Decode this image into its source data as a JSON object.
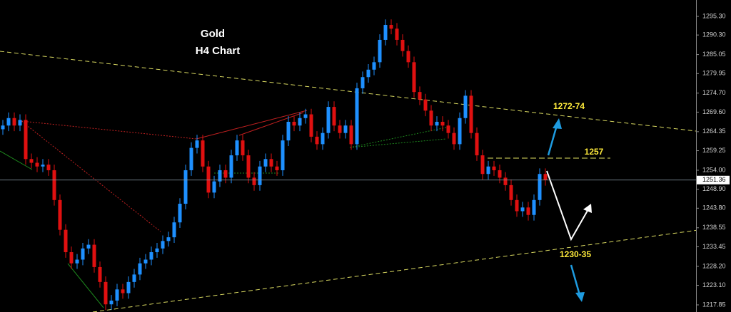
{
  "chart_data": {
    "type": "candlestick",
    "title": "Gold",
    "subtitle": "H4 Chart",
    "annotations": [
      "1272-74",
      "1257",
      "1230-35"
    ],
    "up_color": "#1e90ff",
    "down_color": "#e01010",
    "ylim": [
      1215.94,
      1299.7
    ],
    "yticks": [
      {
        "value": 1295.3,
        "label": "1295.30"
      },
      {
        "value": 1290.3,
        "label": "1290.30"
      },
      {
        "value": 1285.05,
        "label": "1285.05"
      },
      {
        "value": 1279.95,
        "label": "1279.95"
      },
      {
        "value": 1274.7,
        "label": "1274.70"
      },
      {
        "value": 1269.6,
        "label": "1269.60"
      },
      {
        "value": 1264.35,
        "label": "1264.35"
      },
      {
        "value": 1259.25,
        "label": "1259.25"
      },
      {
        "value": 1254,
        "label": "1254.00"
      },
      {
        "value": 1248.9,
        "label": "1248.90"
      },
      {
        "value": 1243.8,
        "label": "1243.80"
      },
      {
        "value": 1238.55,
        "label": "1238.55"
      },
      {
        "value": 1233.45,
        "label": "1233.45"
      },
      {
        "value": 1228.2,
        "label": "1228.20"
      },
      {
        "value": 1223.1,
        "label": "1223.10"
      },
      {
        "value": 1217.85,
        "label": "1217.85"
      }
    ],
    "last_price": 1251.36,
    "open": [
      1265,
      1266,
      1268,
      1266,
      1267.5,
      1257,
      1256,
      1255,
      1255.5,
      1254,
      1246,
      1238,
      1232,
      1229,
      1230,
      1233,
      1234,
      1228,
      1224,
      1218,
      1219,
      1222,
      1221,
      1224,
      1226,
      1229,
      1230,
      1232,
      1233,
      1235,
      1236,
      1240,
      1245,
      1254,
      1260,
      1262,
      1255,
      1248,
      1251,
      1254,
      1252,
      1258,
      1262,
      1258,
      1252,
      1250,
      1255,
      1257,
      1255,
      1254,
      1262,
      1267,
      1266,
      1268,
      1269,
      1263,
      1261,
      1264,
      1271,
      1266,
      1264,
      1266,
      1261,
      1276,
      1279,
      1281,
      1283,
      1289,
      1293,
      1292,
      1289,
      1286,
      1283,
      1275,
      1273,
      1270,
      1266,
      1267,
      1266,
      1264,
      1261,
      1268,
      1274,
      1264,
      1258,
      1253,
      1255,
      1254,
      1252,
      1250,
      1246,
      1243,
      1244,
      1242,
      1246,
      1253
    ],
    "high": [
      1267.5,
      1269.5,
      1269.5,
      1269,
      1269,
      1258.5,
      1257.5,
      1257,
      1257,
      1255.5,
      1247.5,
      1239.5,
      1233.5,
      1231.5,
      1234.5,
      1235.5,
      1235.5,
      1229.5,
      1225.5,
      1220.5,
      1223.5,
      1223.5,
      1225.5,
      1227.5,
      1230.5,
      1231.5,
      1233.5,
      1234.5,
      1236.5,
      1237.5,
      1241.5,
      1246.5,
      1255.5,
      1261.5,
      1263.5,
      1263.5,
      1256.5,
      1252.5,
      1255.5,
      1255.5,
      1259.5,
      1263.5,
      1263.5,
      1259.5,
      1253.5,
      1256.5,
      1258.5,
      1258.5,
      1256.5,
      1263.5,
      1268.5,
      1268.5,
      1269.5,
      1270.5,
      1270.5,
      1264.5,
      1265.5,
      1272.5,
      1272.5,
      1267.5,
      1267.5,
      1267.5,
      1277.5,
      1280.5,
      1282.5,
      1284.5,
      1290.5,
      1294.5,
      1294.5,
      1293.5,
      1290.5,
      1287.5,
      1284.5,
      1276.5,
      1274.5,
      1271.5,
      1268.5,
      1268.5,
      1267.5,
      1265.5,
      1269.5,
      1275.5,
      1275.5,
      1265.5,
      1259.5,
      1256.5,
      1256.5,
      1255.5,
      1253.5,
      1251.5,
      1247.5,
      1245.5,
      1245.5,
      1247.5,
      1254.5,
      1254.5
    ],
    "low": [
      1263.5,
      1264.5,
      1264.5,
      1264.5,
      1255.5,
      1254.5,
      1253.5,
      1253.5,
      1252.5,
      1244.5,
      1236.5,
      1230.5,
      1227.5,
      1227.5,
      1228.5,
      1231.5,
      1226.5,
      1222.5,
      1216.5,
      1216.5,
      1217.5,
      1219.5,
      1219.5,
      1222.5,
      1224.5,
      1227.5,
      1228.5,
      1230.5,
      1231.5,
      1233.5,
      1234.5,
      1238.5,
      1243.5,
      1252.5,
      1258.5,
      1253.5,
      1246.5,
      1246.5,
      1249.5,
      1250.5,
      1250.5,
      1256.5,
      1256.5,
      1250.5,
      1248.5,
      1248.5,
      1253.5,
      1253.5,
      1252.5,
      1252.5,
      1260.5,
      1264.5,
      1264.5,
      1266.5,
      1261.5,
      1259.5,
      1259.5,
      1262.5,
      1264.5,
      1262.5,
      1262.5,
      1259.5,
      1259.5,
      1274.5,
      1277.5,
      1279.5,
      1281.5,
      1287.5,
      1290.5,
      1287.5,
      1284.5,
      1281.5,
      1273.5,
      1271.5,
      1268.5,
      1264.5,
      1264.5,
      1264.5,
      1262.5,
      1259.5,
      1259.5,
      1266.5,
      1262.5,
      1256.5,
      1251.5,
      1251.5,
      1252.5,
      1250.5,
      1248.5,
      1244.5,
      1241.5,
      1241.5,
      1240.5,
      1240.5,
      1244.5,
      1249.86
    ],
    "close": [
      1266,
      1268,
      1266,
      1267.5,
      1257,
      1256,
      1255,
      1255.5,
      1254,
      1246,
      1238,
      1232,
      1229,
      1230,
      1233,
      1234,
      1228,
      1224,
      1218,
      1219,
      1222,
      1221,
      1224,
      1226,
      1229,
      1230,
      1232,
      1233,
      1235,
      1236,
      1240,
      1245,
      1254,
      1260,
      1262,
      1255,
      1248,
      1251,
      1254,
      1252,
      1258,
      1262,
      1258,
      1252,
      1250,
      1255,
      1257,
      1255,
      1254,
      1262,
      1267,
      1266,
      1268,
      1269,
      1263,
      1261,
      1264,
      1271,
      1266,
      1264,
      1266,
      1261,
      1276,
      1279,
      1281,
      1283,
      1289,
      1293,
      1292,
      1289,
      1286,
      1283,
      1275,
      1273,
      1270,
      1266,
      1267,
      1266,
      1264,
      1261,
      1268,
      1274,
      1264,
      1258,
      1253,
      1255,
      1254,
      1252,
      1250,
      1246,
      1243,
      1244,
      1242,
      1246,
      1253,
      1251.36
    ]
  }
}
